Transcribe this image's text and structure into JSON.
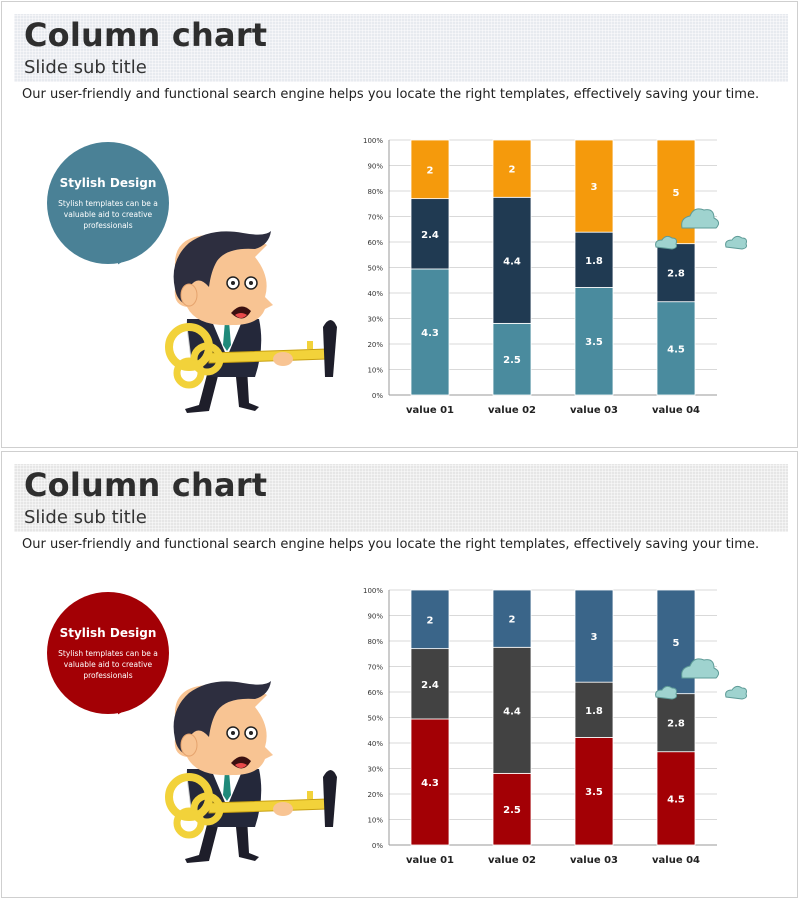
{
  "slides": [
    {
      "title": "Column chart",
      "subtitle": "Slide sub title",
      "description": "Our user-friendly and functional search engine helps you locate the right templates, effectively saving your time.",
      "bubble": {
        "title": "Stylish Design",
        "text": "Stylish templates can be a valuable aid to creative professionals"
      },
      "colors": {
        "bubble": "#4a8196",
        "bottom": "#4a8b9e",
        "middle": "#203a52",
        "top": "#f59a0c"
      }
    },
    {
      "title": "Column chart",
      "subtitle": "Slide sub title",
      "description": "Our user-friendly and functional search engine helps you locate the right templates, effectively saving your time.",
      "bubble": {
        "title": "Stylish Design",
        "text": "Stylish templates can be a valuable aid to creative professionals"
      },
      "colors": {
        "bubble": "#a30005",
        "bottom": "#a30005",
        "middle": "#424242",
        "top": "#3a6589"
      }
    }
  ],
  "chart_data": [
    {
      "type": "bar",
      "stacked": "100%",
      "categories": [
        "value 01",
        "value 02",
        "value 03",
        "value 04"
      ],
      "series": [
        {
          "values": [
            4.3,
            2.5,
            3.5,
            4.5
          ]
        },
        {
          "values": [
            2.4,
            4.4,
            1.8,
            2.8
          ]
        },
        {
          "values": [
            2,
            2,
            3,
            5
          ]
        }
      ],
      "yticks": [
        "0%",
        "10%",
        "20%",
        "30%",
        "40%",
        "50%",
        "60%",
        "70%",
        "80%",
        "90%",
        "100%"
      ],
      "ylim": [
        0,
        100
      ],
      "grid": true
    },
    {
      "type": "bar",
      "stacked": "100%",
      "categories": [
        "value 01",
        "value 02",
        "value 03",
        "value 04"
      ],
      "series": [
        {
          "values": [
            4.3,
            2.5,
            3.5,
            4.5
          ]
        },
        {
          "values": [
            2.4,
            4.4,
            1.8,
            2.8
          ]
        },
        {
          "values": [
            2,
            2,
            3,
            5
          ]
        }
      ],
      "yticks": [
        "0%",
        "10%",
        "20%",
        "30%",
        "40%",
        "50%",
        "60%",
        "70%",
        "80%",
        "90%",
        "100%"
      ],
      "ylim": [
        0,
        100
      ],
      "grid": true
    }
  ]
}
